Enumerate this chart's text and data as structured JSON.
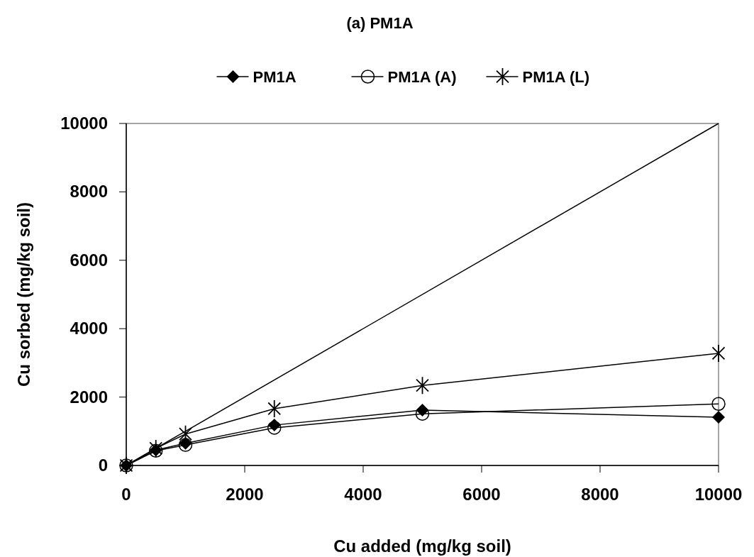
{
  "chart_data": {
    "type": "line",
    "title": "(a) PM1A",
    "xlabel": "Cu added (mg/kg soil)",
    "ylabel": "Cu sorbed (mg/kg soil)",
    "x": [
      0,
      500,
      1000,
      2500,
      5000,
      10000
    ],
    "series": [
      {
        "name": "PM1A",
        "color": "#000000",
        "marker": "diamond",
        "values": [
          0,
          450,
          650,
          1180,
          1620,
          1410
        ]
      },
      {
        "name": "PM1A (A)",
        "color": "#000000",
        "marker": "circle",
        "values": [
          0,
          430,
          600,
          1100,
          1510,
          1800
        ]
      },
      {
        "name": "PM1A (L)",
        "color": "#000000",
        "marker": "star",
        "values": [
          0,
          500,
          920,
          1660,
          2340,
          3280
        ]
      },
      {
        "color": "#000000",
        "marker": "none",
        "x": [
          0,
          10000
        ],
        "values": [
          0,
          10000
        ]
      }
    ],
    "xlim": [
      0,
      10000
    ],
    "xticks": [
      0,
      2000,
      4000,
      6000,
      8000,
      10000
    ],
    "ylim": [
      0,
      10000
    ],
    "yticks": [
      0,
      2000,
      4000,
      6000,
      8000,
      10000
    ],
    "grid": false,
    "legend": "top",
    "line_style": "solid"
  }
}
